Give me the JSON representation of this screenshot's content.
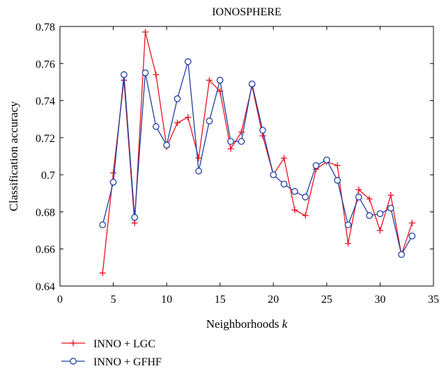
{
  "chart_data": {
    "type": "line",
    "title": "IONOSPHERE",
    "xlabel": "Neighborhoods",
    "xlabel_var": "k",
    "ylabel": "Classification accuracy",
    "xlim": [
      0,
      35
    ],
    "ylim": [
      0.64,
      0.78
    ],
    "xticks": [
      0,
      5,
      10,
      15,
      20,
      25,
      30,
      35
    ],
    "xtick_labels": [
      "0",
      "5",
      "10",
      "15",
      "20",
      "25",
      "30",
      "35"
    ],
    "yticks": [
      0.64,
      0.66,
      0.68,
      0.7,
      0.72,
      0.74,
      0.76,
      0.78
    ],
    "ytick_labels": [
      "0.64",
      "0.66",
      "0.68",
      "0.7",
      "0.72",
      "0.74",
      "0.76",
      "0.78"
    ],
    "grid": false,
    "legend_position": "bottom-left, below plot",
    "x": [
      4,
      5,
      6,
      7,
      8,
      9,
      10,
      11,
      12,
      13,
      14,
      15,
      16,
      17,
      18,
      19,
      20,
      21,
      22,
      23,
      24,
      25,
      26,
      27,
      28,
      29,
      30,
      31,
      32,
      33
    ],
    "series": [
      {
        "name": "INNO + LGC",
        "color": "#e8101f",
        "marker": "plus",
        "values": [
          0.647,
          0.701,
          0.751,
          0.674,
          0.777,
          0.754,
          0.715,
          0.728,
          0.731,
          0.709,
          0.751,
          0.745,
          0.714,
          0.723,
          0.748,
          0.721,
          0.7,
          0.709,
          0.681,
          0.678,
          0.703,
          0.707,
          0.705,
          0.663,
          0.692,
          0.687,
          0.67,
          0.689,
          0.657,
          0.674
        ]
      },
      {
        "name": "INNO + GFHF",
        "color": "#1f3f9f",
        "marker": "circle",
        "values": [
          0.673,
          0.696,
          0.754,
          0.677,
          0.755,
          0.726,
          0.716,
          0.741,
          0.761,
          0.702,
          0.729,
          0.751,
          0.718,
          0.718,
          0.749,
          0.724,
          0.7,
          0.695,
          0.691,
          0.688,
          0.705,
          0.708,
          0.697,
          0.673,
          0.688,
          0.678,
          0.679,
          0.682,
          0.657,
          0.667
        ]
      }
    ]
  }
}
